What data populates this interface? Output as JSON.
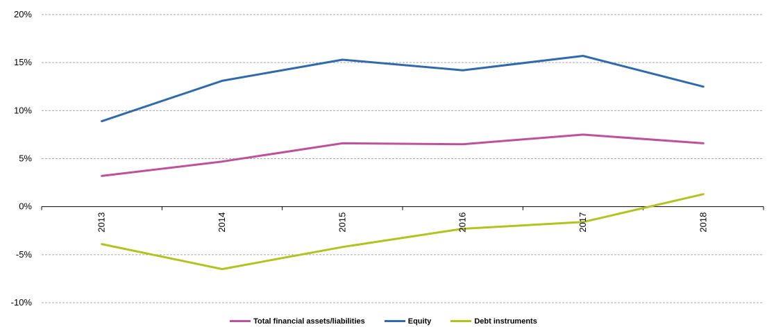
{
  "chart_data": {
    "type": "line",
    "title": "",
    "xlabel": "",
    "ylabel": "",
    "categories": [
      "2013",
      "2014",
      "2015",
      "2016",
      "2017",
      "2018"
    ],
    "ylim": [
      -10,
      20
    ],
    "yticks": [
      -10,
      -5,
      0,
      5,
      10,
      15,
      20
    ],
    "ytick_labels": [
      "-10%",
      "-5%",
      "0%",
      "5%",
      "10%",
      "15%",
      "20%"
    ],
    "grid": true,
    "legend_position": "bottom",
    "series": [
      {
        "name": "Total financial assets/liabilities",
        "color": "#c0509b",
        "values": [
          3.2,
          4.7,
          6.6,
          6.5,
          7.5,
          6.6
        ]
      },
      {
        "name": "Equity",
        "color": "#2e6aad",
        "values": [
          8.9,
          13.1,
          15.3,
          14.2,
          15.7,
          12.5
        ]
      },
      {
        "name": "Debt instruments",
        "color": "#b4c31c",
        "values": [
          -3.9,
          -6.5,
          -4.2,
          -2.3,
          -1.6,
          1.3
        ]
      }
    ]
  }
}
